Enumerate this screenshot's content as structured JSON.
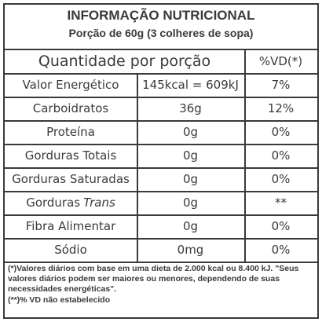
{
  "header": {
    "title": "INFORMAÇÃO NUTRICIONAL",
    "subtitle": "Porção de 60g  (3 colheres de sopa)"
  },
  "table": {
    "columns": [
      "Quantidade por porção",
      "%VD(*)"
    ],
    "rows": [
      {
        "name": "Valor Energético",
        "amount": "145kcal = 609kJ",
        "vd": "7%"
      },
      {
        "name": "Carboidratos",
        "amount": "36g",
        "vd": "12%"
      },
      {
        "name": "Proteína",
        "amount": "0g",
        "vd": "0%"
      },
      {
        "name": "Gorduras Totais",
        "amount": "0g",
        "vd": "0%"
      },
      {
        "name": "Gorduras Saturadas",
        "amount": "0g",
        "vd": "0%"
      },
      {
        "name": "Gorduras",
        "name_italic": "Trans",
        "amount": "0g",
        "vd": "**"
      },
      {
        "name": "Fibra Alimentar",
        "amount": "0g",
        "vd": "0%"
      },
      {
        "name": "Sódio",
        "amount": "0mg",
        "vd": "0%"
      }
    ]
  },
  "notes": [
    "(*)Valores diários com base em uma dieta de 2.000 kcal ou 8.400 kJ. \"Seus valores diários podem ser maiores ou menores, dependendo de suas necessidades energéticas\".",
    "(**)% VD não estabelecido"
  ]
}
